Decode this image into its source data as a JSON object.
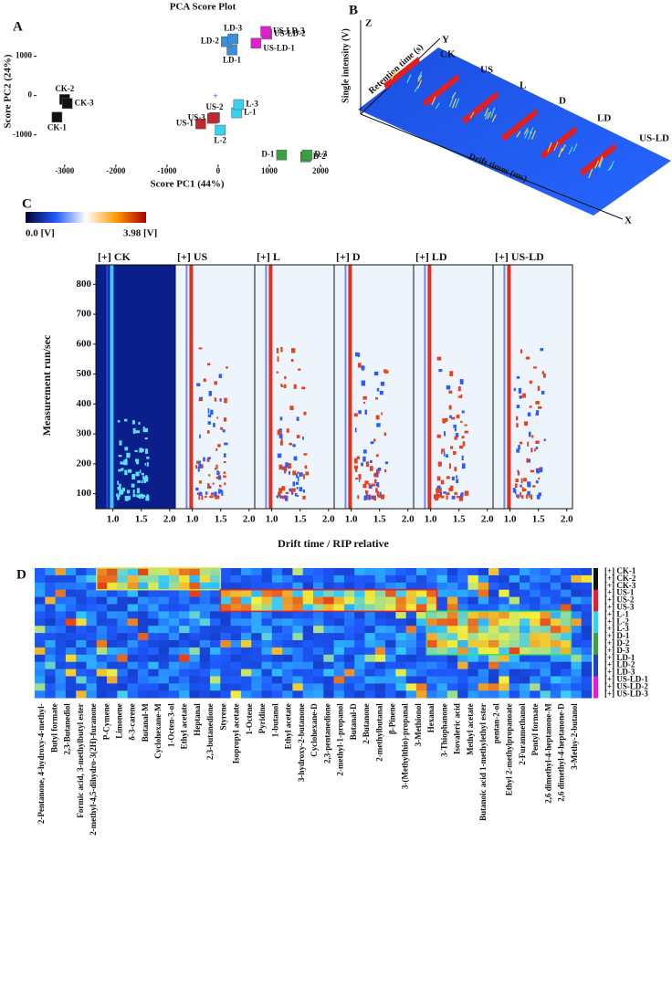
{
  "chart_data": {
    "type": "scatter",
    "panel": "A",
    "title": "PCA Score Plot",
    "xlabel": "Score PC1 (44%)",
    "ylabel": "Score PC2 (24%)",
    "xlim": [
      -3550,
      2250
    ],
    "ylim": [
      -1750,
      2150
    ],
    "xticks": [
      -3000,
      -2000,
      -1000,
      0,
      1000,
      2000
    ],
    "yticks": [
      -1000,
      0,
      1000
    ],
    "series": [
      {
        "color": "#111111",
        "labels": [
          "CK-1",
          "CK-2",
          "CK-3"
        ],
        "x": [
          -3150,
          -3000,
          -2950
        ],
        "y": [
          -550,
          -100,
          -200
        ]
      },
      {
        "color": "#3a8fd8",
        "labels": [
          "LD-1",
          "LD-2",
          "LD-3"
        ],
        "x": [
          270,
          160,
          290
        ],
        "y": [
          1160,
          1370,
          1440
        ]
      },
      {
        "color": "#e020d0",
        "labels": [
          "US-LD-1",
          "US-LD-2",
          "US-LD-3"
        ],
        "x": [
          740,
          950,
          930
        ],
        "y": [
          1330,
          1560,
          1630
        ]
      },
      {
        "color": "#c0282e",
        "labels": [
          "US-1",
          "US-2",
          "US-3"
        ],
        "x": [
          -340,
          -70,
          -110
        ],
        "y": [
          -720,
          -560,
          -580
        ]
      },
      {
        "color": "#3ad0f0",
        "labels": [
          "L-1",
          "L-2",
          "L-3"
        ],
        "x": [
          360,
          40,
          400
        ],
        "y": [
          -440,
          -880,
          -230
        ]
      },
      {
        "color": "#3aa040",
        "labels": [
          "D-1",
          "D-2",
          "D-3"
        ],
        "x": [
          1240,
          1710,
          1740
        ],
        "y": [
          -1510,
          -1560,
          -1510
        ]
      }
    ]
  },
  "panel_b": {
    "panel": "B",
    "z_axis": "Z",
    "y_axis": "Y",
    "x_axis": "X",
    "zlabel": "Single intensity (V)",
    "ylabel": "Retention time (s)",
    "xlabel": "Drift times (ms)",
    "groups": [
      "CK",
      "US",
      "L",
      "D",
      "LD",
      "US-LD"
    ]
  },
  "panel_c": {
    "panel": "C",
    "colorbar_min": "0.0 [V]",
    "colorbar_max": "3.98 [V]",
    "titles": [
      "[+] CK",
      "[+] US",
      "[+] L",
      "[+] D",
      "[+] LD",
      "[+] US-LD"
    ],
    "ylabel": "Measurement run/sec",
    "xlabel": "Drift time / RIP relative",
    "ylim": [
      50,
      865
    ],
    "yticks": [
      100,
      200,
      300,
      400,
      500,
      600,
      700,
      800
    ],
    "xlim": [
      0.7,
      2.1
    ],
    "xticks": [
      {
        "value": 1,
        "label": "1.0"
      },
      {
        "value": 1.5,
        "label": "1.5"
      },
      {
        "value": 2,
        "label": "2.0"
      }
    ]
  },
  "panel_d": {
    "panel": "D",
    "rows": [
      "[+] CK-1",
      "[+] CK-2",
      "[+] CK-3",
      "[+] US-1",
      "[+] US-2",
      "[+] US-3",
      "[+] L-1",
      "[+] L-2",
      "[+] L-3",
      "[+] D-1",
      "[+] D-2",
      "[+] D-3",
      "[+] LD-1",
      "[+] LD-2",
      "[+] LD-3",
      "[+] US-LD-1",
      "[+] US-LD-2",
      "[+] US-LD-3"
    ],
    "compounds": [
      "2-Pentanone, 4-hydroxy-4-methyl-",
      "Butyl formate",
      "2,3-Butanediol",
      "Formic acid, 3-methylbutyl ester",
      "2-methyl-4,5-dihydro-3(2H)-furanone",
      "P-Cymene",
      "Limonene",
      "δ-3-carene",
      "Butanal-M",
      "Cyclohexane-M",
      "1-Octen-3-ol",
      "Ethyl acetate",
      "Heptanal",
      "2,3-butanedione",
      "Styrene",
      "Isopropyl acetate",
      "1-Octene",
      "Pyridine",
      "1-butanol",
      "Ethyl acetate",
      "3-hydroxy-2-butanone",
      "Cyclohexane-D",
      "2,3-pentanedione",
      "2-methyl-1-propanol",
      "Butanal-D",
      "2-Butanone",
      "2-methylbutanal",
      "β-Pinene",
      "3-(Methylthio)-propanal",
      "3-Methionol",
      "Hexanal",
      "3-Thiophanone",
      "Isovaleric acid",
      "Methyl acetate",
      "Butanoic acid 1-methylethyl ester",
      "pentan-2-ol",
      "Ethyl 2-methylpropanoate",
      "2-Furanmethanol",
      "Pentyl formate",
      "2,6 dimethyl-4-heptanone-M",
      "2,6 dimethyl-4-heptanone-D",
      "3-Methy-2-butanol"
    ]
  }
}
